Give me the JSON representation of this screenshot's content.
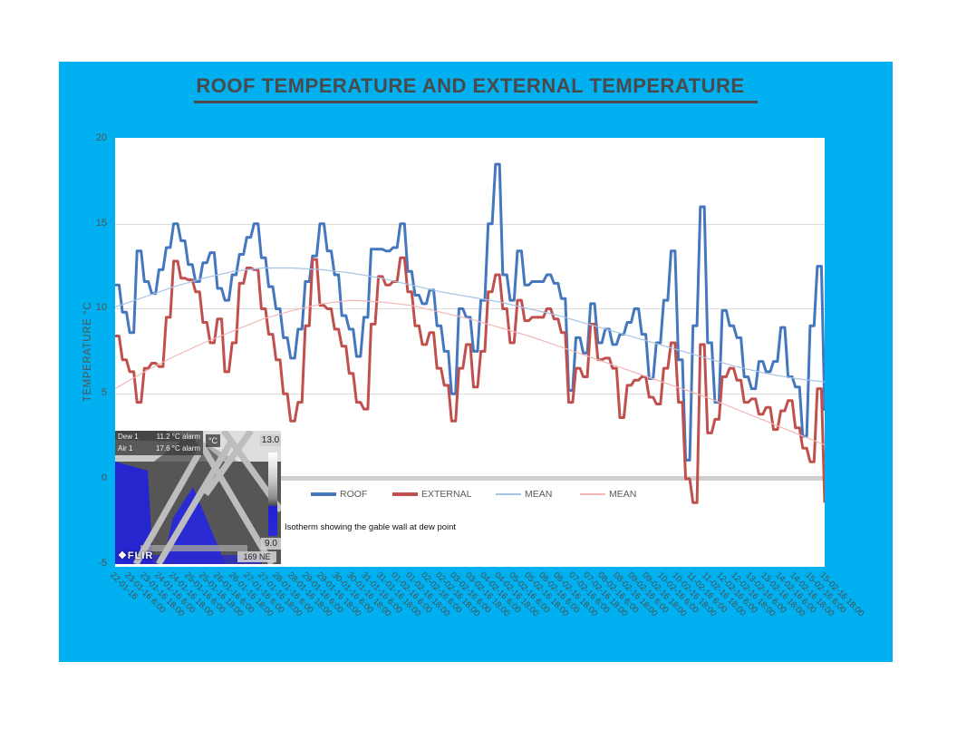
{
  "page": {
    "background": "#FFFFFF",
    "panel_color": "#00B0F0"
  },
  "title": {
    "text": "ROOF TEMPERATURE AND EXTERNAL TEMPERATURE",
    "color": "#4A4A4A"
  },
  "y_axis": {
    "title": "TEMPERATURE °C",
    "ticks": [
      20,
      15,
      10,
      5,
      0,
      -5
    ],
    "min": -5,
    "max": 20
  },
  "annotation": {
    "text": "Isotherm showing the gable wall at dew point"
  },
  "flir": {
    "dew_label": "Dew 1",
    "dew_value": "11.2 °C alarm",
    "air_label": "Air 1",
    "air_value": "17.6 °C alarm",
    "unit": "°C",
    "scale_max": "13.0",
    "scale_min": "9.0",
    "compass": "169 NE",
    "brand": "FLIR",
    "brand_icon": "❖"
  },
  "chart_data": {
    "type": "line",
    "title": "ROOF TEMPERATURE AND EXTERNAL TEMPERATURE",
    "xlabel": "",
    "ylabel": "TEMPERATURE °C",
    "ylim": [
      -5,
      20
    ],
    "grid": true,
    "legend_position": "bottom-inside",
    "categories": [
      "22-01-16",
      "23-01-16 6:00",
      "23-01-16 18:00",
      "24-01-16 6:00",
      "24-01-16 18:00",
      "25-01-16 6:00",
      "25-01-16 18:00",
      "26-01-16 6:00",
      "26-01-16 18:00",
      "27-01-16 6:00",
      "27-01-16 18:00",
      "28-01-16 6:00",
      "28-01-16 18:00",
      "29-01-16 6:00",
      "29-01-16 18:00",
      "30-01-16 6:00",
      "30-01-16 18:00",
      "31-01-16 6:00",
      "31-01-16 18:00",
      "01-02-16 6:00",
      "01-02-16 18:00",
      "02-02-16 6:00",
      "02-02-16 18:00",
      "03-02-16 6:00",
      "03-02-16 18:00",
      "04-02-16 6:00",
      "04-02-16 18:00",
      "05-02-16 6:00",
      "05-02-16 18:00",
      "06-02-16 6:00",
      "06-02-16 18:00",
      "07-02-16 6:00",
      "07-02-16 18:00",
      "08-02-16 6:00",
      "08-02-16 18:00",
      "09-02-16 6:00",
      "09-02-16 18:00",
      "10-02-16 6:00",
      "10-02-16 18:00",
      "11-02-16 6:00",
      "11-02-16 18:00",
      "12-02-16 6:00",
      "12-02-16 18:00",
      "13-02-16 6:00",
      "13-02-16 18:00",
      "14-02-16 6:00",
      "14-02-16 18:00",
      "15-02-16 6:00",
      "15-02-16 18:00"
    ],
    "sampling_note": "values estimated from plot at 6-hour resolution",
    "series": [
      {
        "name": "ROOF",
        "color": "#4477BE",
        "width": 3,
        "stepped": true,
        "legend": true,
        "values": [
          11.4,
          9.8,
          8.6,
          13.4,
          11.6,
          10.9,
          12.3,
          13.6,
          15.0,
          14.0,
          12.6,
          11.6,
          12.7,
          13.3,
          11.2,
          10.5,
          12.0,
          13.2,
          14.2,
          15.0,
          13.0,
          11.3,
          10.0,
          8.3,
          7.1,
          8.8,
          11.6,
          13.1,
          15.0,
          13.4,
          12.0,
          9.6,
          8.8,
          7.2,
          9.5,
          13.5,
          13.5,
          13.4,
          13.6,
          15.0,
          12.2,
          10.8,
          10.3,
          11.1,
          9.0,
          7.5,
          5.0,
          10.0,
          9.5,
          7.5,
          10.5,
          15.0,
          18.5,
          12.0,
          10.5,
          13.4,
          11.4,
          11.6,
          11.6,
          12.0,
          11.5,
          10.6,
          5.2,
          8.3,
          7.4,
          10.3,
          8.0,
          8.8,
          7.9,
          8.5,
          9.2,
          10.0,
          8.5,
          5.9,
          8.0,
          10.5,
          13.4,
          7.0,
          1.1,
          9.0,
          16.0,
          8.0,
          4.5,
          9.9,
          9.0,
          8.3,
          6.0,
          5.3,
          6.9,
          6.3,
          6.9,
          8.9,
          6.0,
          5.4,
          2.5,
          9.0,
          12.5,
          4.0
        ]
      },
      {
        "name": "EXTERNAL",
        "color": "#C0504D",
        "width": 3,
        "stepped": true,
        "legend": true,
        "values": [
          8.4,
          7.0,
          6.3,
          4.5,
          6.5,
          6.8,
          6.6,
          9.5,
          12.8,
          11.8,
          11.7,
          11.0,
          9.2,
          8.0,
          9.4,
          6.3,
          8.0,
          11.5,
          12.4,
          12.3,
          10.0,
          8.5,
          7.0,
          5.0,
          3.4,
          4.5,
          9.0,
          12.9,
          10.2,
          10.0,
          8.8,
          7.8,
          6.2,
          4.5,
          4.1,
          9.1,
          11.9,
          11.4,
          11.6,
          13.0,
          11.0,
          9.0,
          7.9,
          8.6,
          6.5,
          5.5,
          3.4,
          6.5,
          7.9,
          5.4,
          7.5,
          11.0,
          12.0,
          10.0,
          8.0,
          10.5,
          9.3,
          9.5,
          9.5,
          10.0,
          9.4,
          8.6,
          4.5,
          6.5,
          6.0,
          9.1,
          7.0,
          7.1,
          6.5,
          3.6,
          5.5,
          5.8,
          6.0,
          4.8,
          4.4,
          6.5,
          8.0,
          4.5,
          0.0,
          -1.4,
          7.9,
          2.7,
          3.5,
          6.0,
          6.5,
          5.8,
          4.5,
          4.7,
          3.8,
          4.2,
          2.9,
          4.0,
          4.6,
          3.0,
          1.8,
          1.0,
          5.3,
          -1.4
        ]
      },
      {
        "name": "MEAN",
        "color": "#A7C4E4",
        "width": 1.2,
        "stepped": false,
        "legend": true,
        "values": [
          10.1,
          10.7,
          11.3,
          11.8,
          12.2,
          12.4,
          12.4,
          12.3,
          12.1,
          11.8,
          11.4,
          11.0,
          10.7,
          10.4,
          10.0,
          9.6,
          9.1,
          8.6,
          8.1,
          7.6,
          7.1,
          6.6,
          6.2,
          5.9,
          5.7
        ]
      },
      {
        "name": "MEAN",
        "color": "#EFB8B7",
        "width": 1.2,
        "stepped": false,
        "legend": true,
        "values": [
          5.3,
          6.3,
          7.2,
          8.0,
          8.7,
          9.4,
          9.9,
          10.3,
          10.5,
          10.4,
          10.2,
          9.8,
          9.4,
          8.9,
          8.4,
          7.8,
          7.2,
          6.6,
          6.0,
          5.4,
          4.8,
          4.1,
          3.4,
          2.7,
          2.0
        ]
      }
    ]
  }
}
